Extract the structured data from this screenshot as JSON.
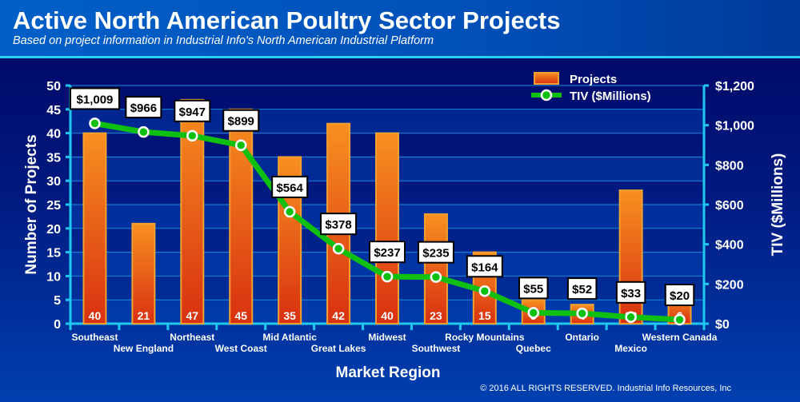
{
  "chart_data": {
    "type": "bar+line",
    "title": "Active North American Poultry Sector Projects",
    "subtitle": "Based on project information in Industrial Info's North American Industrial Platform",
    "xlabel": "Market Region",
    "ylabel": "Number of Projects",
    "y2label": "TIV ($Millions)",
    "ylim": [
      0,
      50
    ],
    "y2lim": [
      0,
      1200
    ],
    "yticks": [
      "0",
      "5",
      "10",
      "15",
      "20",
      "25",
      "30",
      "35",
      "40",
      "45",
      "50"
    ],
    "y2ticks": [
      "$0",
      "$200",
      "$400",
      "$600",
      "$800",
      "$1,000",
      "$1,200"
    ],
    "categories": [
      "Southeast",
      "New England",
      "Northeast",
      "West Coast",
      "Mid Atlantic",
      "Great Lakes",
      "Midwest",
      "Southwest",
      "Rocky Mountains",
      "Quebec",
      "Ontario",
      "Mexico",
      "Western Canada"
    ],
    "series": [
      {
        "name": "Projects",
        "type": "bar",
        "values": [
          40,
          21,
          47,
          45,
          35,
          42,
          40,
          23,
          15,
          5,
          4,
          28,
          6
        ],
        "color": "#f07010"
      },
      {
        "name": "TIV ($Millions)",
        "type": "line",
        "values": [
          1009,
          966,
          947,
          899,
          564,
          378,
          237,
          235,
          164,
          55,
          52,
          33,
          20
        ],
        "labels": [
          "$1,009",
          "$966",
          "$947",
          "$899",
          "$564",
          "$378",
          "$237",
          "$235",
          "$164",
          "$55",
          "$52",
          "$33",
          "$20"
        ],
        "color": "#10c010"
      }
    ],
    "legend": "top-right",
    "grid": true
  },
  "footer": "© 2016 ALL RIGHTS RESERVED. Industrial Info Resources, Inc"
}
